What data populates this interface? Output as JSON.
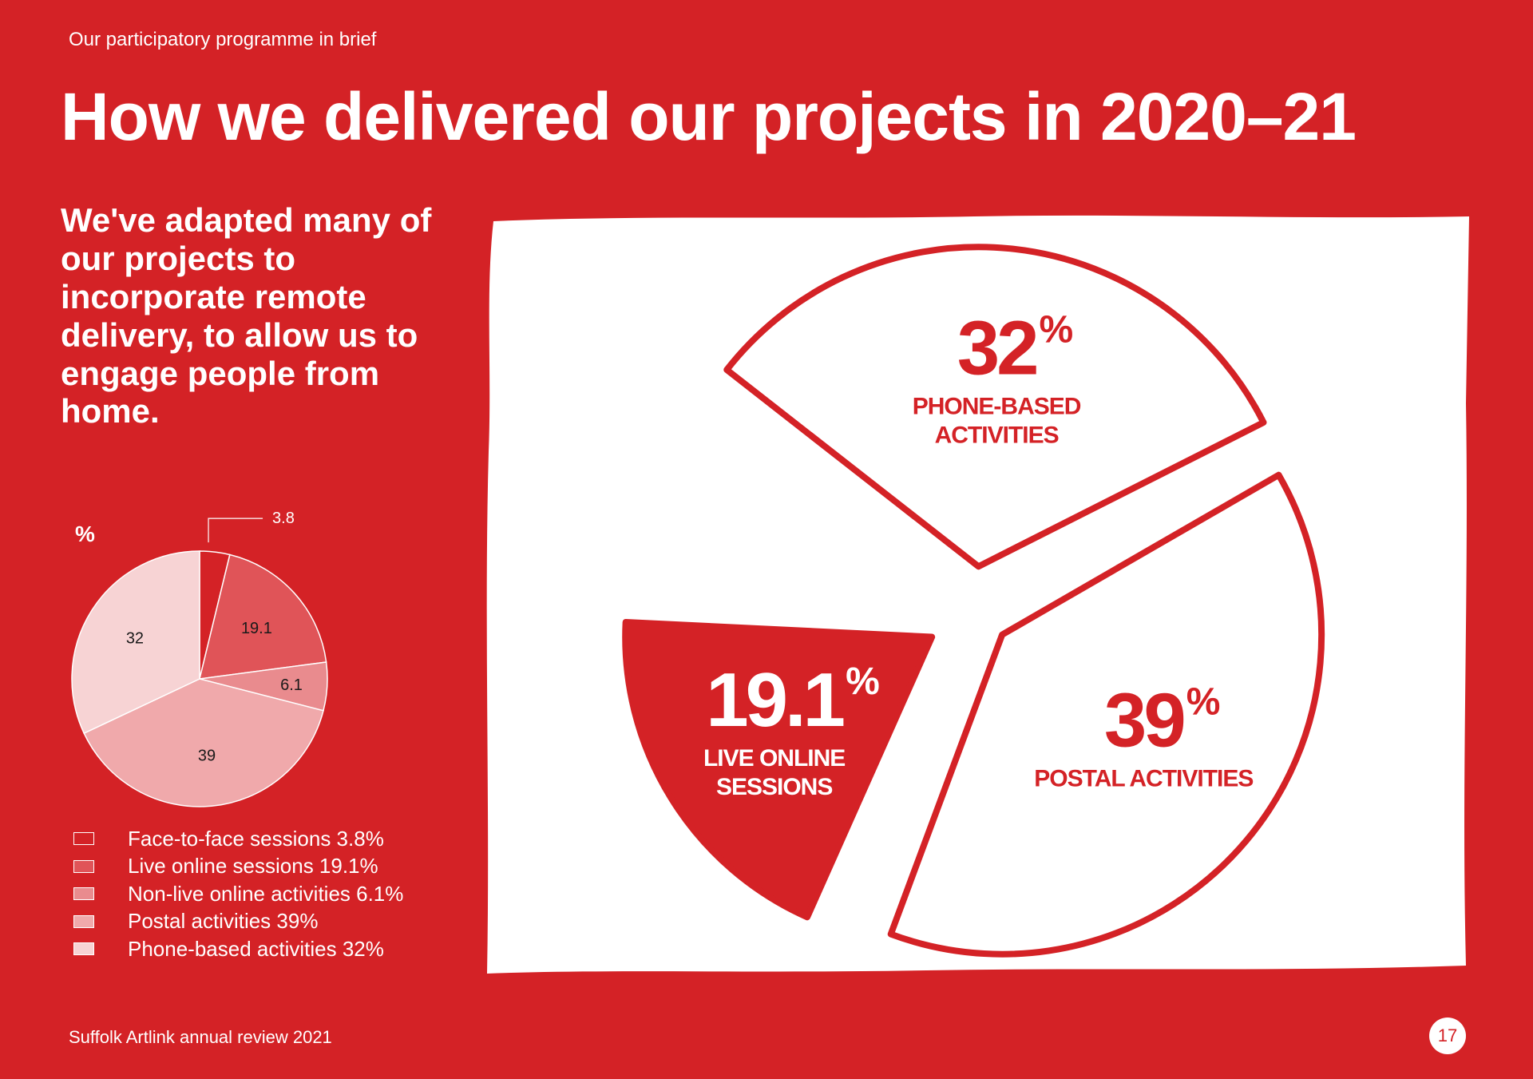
{
  "header": {
    "section_label": "Our participatory programme in brief",
    "title": "How we delivered our projects in 2020–21"
  },
  "intro": "We've adapted many of our projects to incorporate remote delivery, to allow us to engage people from home.",
  "colors": {
    "background": "#d42226",
    "face_to_face": "#d42226",
    "live_online": "#e05458",
    "non_live_online": "#e98b8e",
    "postal": "#f0a9ab",
    "phone": "#f7d3d4"
  },
  "chart_data": [
    {
      "type": "pie",
      "unit_label": "%",
      "categories": [
        "Face-to-face sessions",
        "Live online sessions",
        "Non-live online activities",
        "Postal activities",
        "Phone-based activities"
      ],
      "values": [
        3.8,
        19.1,
        6.1,
        39,
        32
      ],
      "data_labels": [
        "3.8",
        "19.1",
        "6.1",
        "39",
        "32"
      ],
      "legend": [
        {
          "label": "Face-to-face sessions 3.8%",
          "color": "#d42226"
        },
        {
          "label": "Live online sessions 19.1%",
          "color": "#e05458"
        },
        {
          "label": "Non-live online activities 6.1%",
          "color": "#e98b8e"
        },
        {
          "label": "Postal activities 39%",
          "color": "#f0a9ab"
        },
        {
          "label": "Phone-based activities 32%",
          "color": "#f7d3d4"
        }
      ],
      "legend_position": "bottom"
    },
    {
      "type": "pie",
      "categories": [
        "Phone-based activities",
        "Postal activities",
        "Live online sessions"
      ],
      "values": [
        32,
        39,
        19.1
      ],
      "slices": [
        {
          "value_text": "32",
          "pct_sign": "%",
          "label_lines": [
            "PHONE-BASED",
            "ACTIVITIES"
          ],
          "style": "outline"
        },
        {
          "value_text": "39",
          "pct_sign": "%",
          "label_lines": [
            "POSTAL ACTIVITIES"
          ],
          "style": "outline"
        },
        {
          "value_text": "19.1",
          "pct_sign": "%",
          "label_lines": [
            "LIVE ONLINE",
            "SESSIONS"
          ],
          "style": "filled"
        }
      ]
    }
  ],
  "footer": {
    "publication": "Suffolk Artlink annual review 2021",
    "page_number": "17"
  }
}
